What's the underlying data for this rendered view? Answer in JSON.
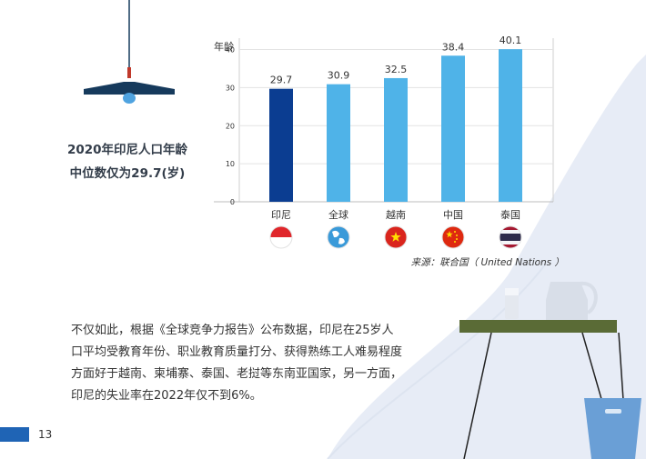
{
  "headline": {
    "line1": "2020年印尼人口年龄",
    "line2": "中位数仅为29.7(岁)"
  },
  "chart_data": {
    "type": "bar",
    "ylabel": "年龄",
    "categories": [
      "印尼",
      "全球",
      "越南",
      "中国",
      "泰国"
    ],
    "values": [
      29.7,
      30.9,
      32.5,
      38.4,
      40.1
    ],
    "data_labels": [
      "29.7",
      "30.9",
      "32.5",
      "38.4",
      "40.1"
    ],
    "yticks": [
      0,
      10,
      20,
      30,
      40
    ],
    "ylim": [
      0,
      43
    ],
    "grid": true,
    "highlight_color": "#0b3d91",
    "bar_color": "#4fb3e8",
    "flags": [
      "indonesia-flag",
      "globe-icon",
      "vietnam-flag",
      "china-flag",
      "thailand-flag"
    ]
  },
  "source": "来源：联合国（ United Nations ）",
  "body": {
    "lines": [
      "不仅如此，根据《全球竞争力报告》公布数据，印尼在25岁人",
      "口平均受教育年份、职业教育质量打分、获得熟练工人难易程度",
      "方面好于越南、柬埔寨、泰国、老挝等东南亚国家，另一方面，",
      "印尼的失业率在2022年仅不到6%。"
    ]
  },
  "page_number": "13",
  "colors": {
    "accent": "#1f64b5",
    "lamp": "#163a5c",
    "shelf": "#5a6b36",
    "background_shape": "#e7ecf6"
  }
}
